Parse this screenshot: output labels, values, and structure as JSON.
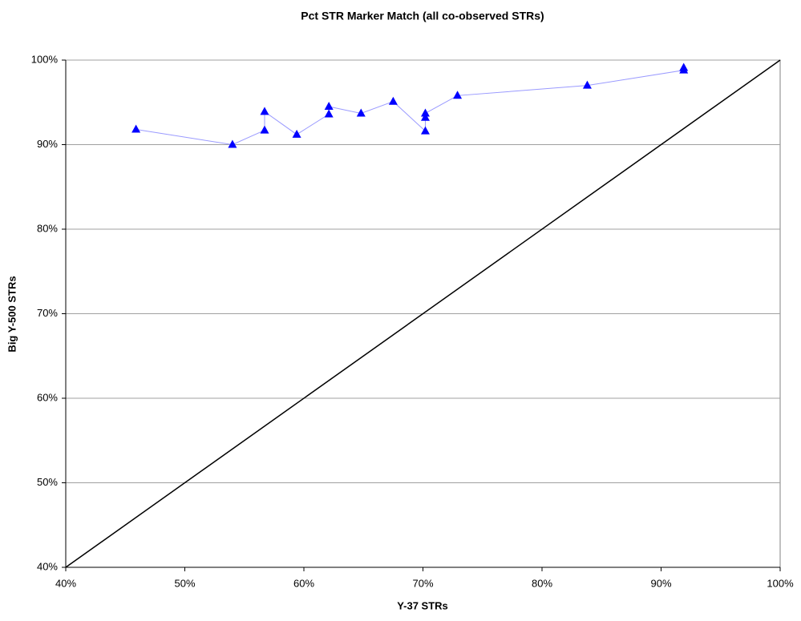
{
  "chart_data": {
    "type": "scatter",
    "title": "Pct STR Marker Match (all co-observed STRs)",
    "x_label": "Y-37 STRs",
    "y_label": "Big Y-500 STRs",
    "xlim": [
      40,
      100
    ],
    "ylim": [
      40,
      100
    ],
    "xticks": [
      {
        "value": 40,
        "label": "40%"
      },
      {
        "value": 50,
        "label": "50%"
      },
      {
        "value": 60,
        "label": "60%"
      },
      {
        "value": 70,
        "label": "70%"
      },
      {
        "value": 80,
        "label": "80%"
      },
      {
        "value": 90,
        "label": "90%"
      },
      {
        "value": 100,
        "label": "100%"
      }
    ],
    "yticks": [
      {
        "value": 40,
        "label": "40%"
      },
      {
        "value": 50,
        "label": "50%"
      },
      {
        "value": 60,
        "label": "60%"
      },
      {
        "value": 70,
        "label": "70%"
      },
      {
        "value": 80,
        "label": "80%"
      },
      {
        "value": 90,
        "label": "90%"
      },
      {
        "value": 100,
        "label": "100%"
      }
    ],
    "grid": true,
    "series": [
      {
        "color": "#0000ff",
        "line_color": "#9a9aff",
        "marker": "triangle",
        "x": [
          45.9,
          54.0,
          56.7,
          56.7,
          59.4,
          62.1,
          62.1,
          64.8,
          67.5,
          70.2,
          70.2,
          70.2,
          72.9,
          83.8,
          91.9,
          91.9
        ],
        "values": [
          91.8,
          90.0,
          91.7,
          93.9,
          91.2,
          93.6,
          94.5,
          93.7,
          95.1,
          91.6,
          93.2,
          93.7,
          95.8,
          97.0,
          98.8,
          99.1
        ]
      },
      {
        "color": "#000000",
        "marker": "none",
        "x": [
          40,
          100
        ],
        "values": [
          40,
          100
        ]
      }
    ]
  }
}
